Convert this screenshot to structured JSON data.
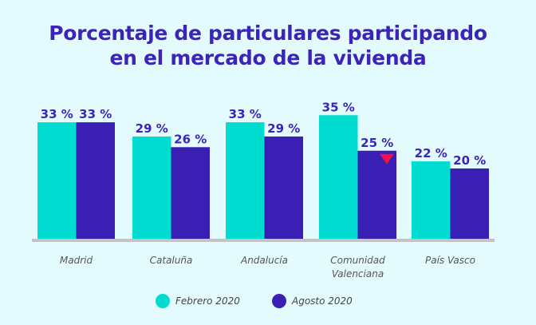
{
  "chart_data": {
    "type": "bar",
    "title": "Porcentaje de particulares participando en el mercado de la vivienda",
    "title_lines": [
      "Porcentaje de particulares participando",
      "en el mercado de la vivienda"
    ],
    "categories": [
      [
        "Madrid"
      ],
      [
        "Cataluña"
      ],
      [
        "Andalucía"
      ],
      [
        "Comunidad",
        "Valenciana"
      ],
      [
        "País Vasco"
      ]
    ],
    "series": [
      {
        "name": "Febrero 2020",
        "color": "#00dcd0",
        "values": [
          33,
          29,
          33,
          35,
          22
        ]
      },
      {
        "name": "Agosto 2020",
        "color": "#3a1fb5",
        "values": [
          33,
          26,
          29,
          25,
          20
        ]
      }
    ],
    "value_suffix": " %",
    "annotations": [
      {
        "category": "Comunidad Valenciana",
        "series": "Agosto 2020",
        "marker": "down-triangle",
        "color": "#f0104f"
      }
    ],
    "ylim": [
      0,
      35
    ],
    "grid": false,
    "legend": "bottom",
    "colors": {
      "title": "#3d24b8",
      "baseline": "#c4c4c4",
      "background": "#e4fbfd"
    }
  }
}
